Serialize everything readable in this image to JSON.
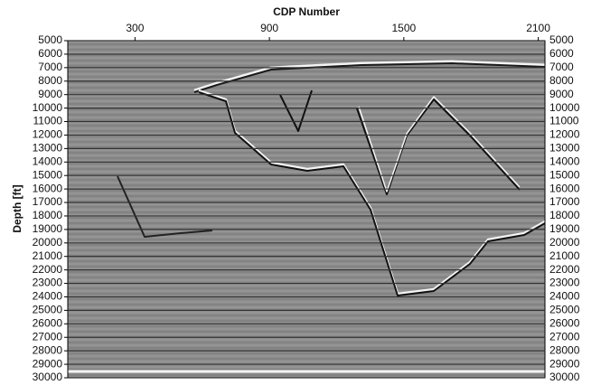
{
  "chart_data": {
    "type": "image",
    "title": "CDP Number",
    "y_label": "Depth [ft]",
    "xlim": [
      0,
      2130
    ],
    "xticks": [
      300,
      900,
      1500,
      2100
    ],
    "ylim": [
      5000,
      30000
    ],
    "yticks": [
      5000,
      6000,
      7000,
      8000,
      9000,
      10000,
      11000,
      12000,
      13000,
      14000,
      15000,
      16000,
      17000,
      18000,
      19000,
      20000,
      21000,
      22000,
      23000,
      24000,
      25000,
      26000,
      27000,
      28000,
      29000,
      30000
    ],
    "grid": true
  }
}
